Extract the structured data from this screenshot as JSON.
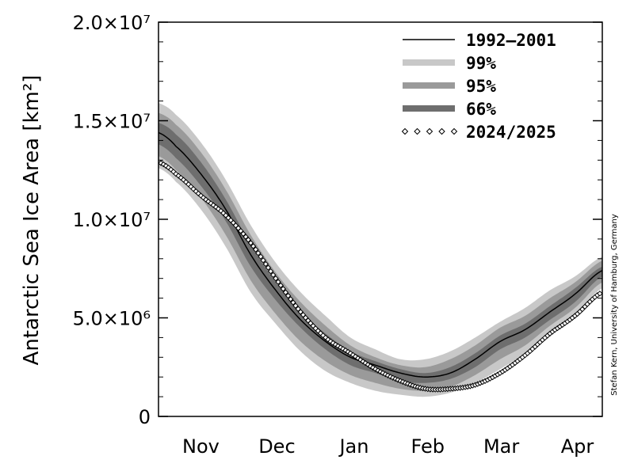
{
  "chart_data": {
    "type": "area",
    "ylabel": "Antarctic Sea Ice Area [km²]",
    "credit": "Stefan Kern, University of Hamburg, Germany",
    "months": [
      "Nov",
      "Dec",
      "Jan",
      "Feb",
      "Mar",
      "Apr"
    ],
    "xlim_days": [
      -7,
      171
    ],
    "ylim": [
      0,
      20000000
    ],
    "yticks": [
      {
        "value": 0,
        "label": "0"
      },
      {
        "value": 5000000,
        "label": "5.0×10⁶"
      },
      {
        "value": 10000000,
        "label": "1.0×10⁷"
      },
      {
        "value": 15000000,
        "label": "1.5×10⁷"
      },
      {
        "value": 20000000,
        "label": "2.0×10⁷"
      }
    ],
    "legend_position": "top-right",
    "legend": [
      {
        "key": "mean",
        "label": "1992–2001"
      },
      {
        "key": "p99",
        "label": "99%"
      },
      {
        "key": "p95",
        "label": "95%"
      },
      {
        "key": "p66",
        "label": "66%"
      },
      {
        "key": "current",
        "label": "2024/2025"
      }
    ],
    "colors": {
      "p99": "#c8c8c8",
      "p95": "#9a9a9a",
      "p66": "#6e6e6e",
      "mean": "#000000",
      "current": "#000000"
    },
    "days_since_nov1": [
      -7,
      0,
      10,
      20,
      30,
      40,
      50,
      60,
      70,
      80,
      90,
      100,
      110,
      120,
      130,
      140,
      150,
      160,
      171
    ],
    "series": [
      {
        "name": "1992–2001",
        "key": "mean",
        "values": [
          14400000,
          13700000,
          12300000,
          10500000,
          8200000,
          6400000,
          4900000,
          3800000,
          3000000,
          2600000,
          2200000,
          2000000,
          2200000,
          2900000,
          3800000,
          4400000,
          5300000,
          6200000,
          7400000
        ]
      },
      {
        "name": "99%",
        "key": "p99",
        "upper": [
          15900000,
          15300000,
          13900000,
          12000000,
          9700000,
          7800000,
          6300000,
          5100000,
          4000000,
          3400000,
          2900000,
          2900000,
          3300000,
          4000000,
          4800000,
          5500000,
          6400000,
          7100000,
          8100000
        ],
        "lower": [
          12600000,
          11900000,
          10500000,
          8600000,
          6300000,
          4700000,
          3300000,
          2300000,
          1700000,
          1300000,
          1100000,
          1000000,
          1200000,
          1700000,
          2400000,
          3200000,
          4300000,
          5200000,
          6500000
        ]
      },
      {
        "name": "95%",
        "key": "p95",
        "upper": [
          15400000,
          14800000,
          13400000,
          11500000,
          9200000,
          7300000,
          5800000,
          4600000,
          3600000,
          3000000,
          2600000,
          2500000,
          2900000,
          3600000,
          4500000,
          5100000,
          6000000,
          6800000,
          7900000
        ],
        "lower": [
          13200000,
          12500000,
          11100000,
          9200000,
          6900000,
          5200000,
          3800000,
          2800000,
          2100000,
          1700000,
          1400000,
          1300000,
          1500000,
          2100000,
          2900000,
          3600000,
          4600000,
          5500000,
          6800000
        ]
      },
      {
        "name": "66%",
        "key": "p66",
        "upper": [
          14900000,
          14300000,
          12900000,
          11000000,
          8700000,
          6800000,
          5300000,
          4200000,
          3300000,
          2800000,
          2400000,
          2200000,
          2500000,
          3200000,
          4100000,
          4700000,
          5600000,
          6500000,
          7600000
        ],
        "lower": [
          13800000,
          13100000,
          11700000,
          9900000,
          7600000,
          5900000,
          4500000,
          3400000,
          2600000,
          2200000,
          1800000,
          1700000,
          1900000,
          2500000,
          3400000,
          4000000,
          4900000,
          5800000,
          7100000
        ]
      },
      {
        "name": "2024/2025",
        "key": "current",
        "values": [
          12900000,
          12300000,
          11200000,
          10200000,
          8800000,
          7000000,
          5300000,
          4000000,
          3200000,
          2400000,
          1800000,
          1400000,
          1400000,
          1600000,
          2200000,
          3100000,
          4200000,
          5100000,
          6300000
        ]
      }
    ]
  }
}
